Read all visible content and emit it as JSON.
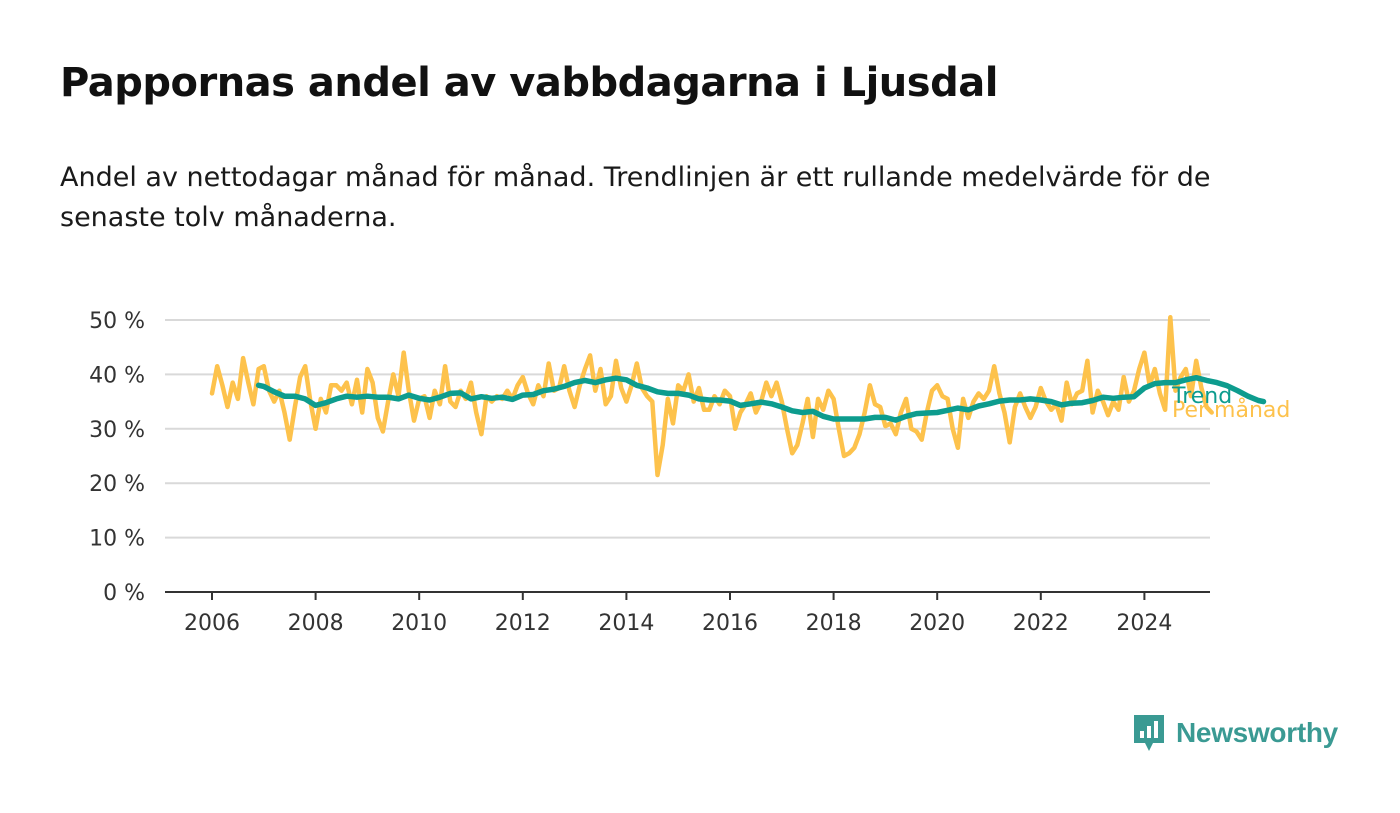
{
  "title": "Pappornas andel av vabbdagarna i Ljusdal",
  "subtitle": "Andel av nettodagar månad för månad. Trendlinjen är ett rullande medelvärde för de senaste tolv månaderna.",
  "brand": {
    "name": "Newsworthy",
    "color": "#3a9a93"
  },
  "chart_data": {
    "type": "line",
    "x_unit": "year",
    "y_unit": "%",
    "ylim": [
      0,
      50
    ],
    "y_ticks": [
      {
        "value": 0,
        "label": "0 %"
      },
      {
        "value": 10,
        "label": "10 %"
      },
      {
        "value": 20,
        "label": "20 %"
      },
      {
        "value": 30,
        "label": "30 %"
      },
      {
        "value": 40,
        "label": "40 %"
      },
      {
        "value": 50,
        "label": "50 %"
      }
    ],
    "x_ticks": [
      {
        "value": 2006,
        "label": "2006"
      },
      {
        "value": 2008,
        "label": "2008"
      },
      {
        "value": 2010,
        "label": "2010"
      },
      {
        "value": 2012,
        "label": "2012"
      },
      {
        "value": 2014,
        "label": "2014"
      },
      {
        "value": 2016,
        "label": "2016"
      },
      {
        "value": 2018,
        "label": "2018"
      },
      {
        "value": 2020,
        "label": "2020"
      },
      {
        "value": 2022,
        "label": "2022"
      },
      {
        "value": 2024,
        "label": "2024"
      }
    ],
    "xlim": [
      2005.1,
      2025.4
    ],
    "grid": true,
    "series": [
      {
        "name": "Per månad",
        "color": "#fdc24c",
        "points": [
          [
            2006.0,
            36.5
          ],
          [
            2006.1,
            41.5
          ],
          [
            2006.2,
            38.0
          ],
          [
            2006.3,
            34.0
          ],
          [
            2006.4,
            38.5
          ],
          [
            2006.5,
            35.5
          ],
          [
            2006.6,
            43.0
          ],
          [
            2006.7,
            38.5
          ],
          [
            2006.8,
            34.5
          ],
          [
            2006.9,
            41.0
          ],
          [
            2007.0,
            41.5
          ],
          [
            2007.1,
            37.0
          ],
          [
            2007.2,
            35.0
          ],
          [
            2007.3,
            37.0
          ],
          [
            2007.4,
            33.0
          ],
          [
            2007.5,
            28.0
          ],
          [
            2007.6,
            34.0
          ],
          [
            2007.7,
            39.5
          ],
          [
            2007.8,
            41.5
          ],
          [
            2007.9,
            35.0
          ],
          [
            2008.0,
            30.0
          ],
          [
            2008.1,
            35.5
          ],
          [
            2008.2,
            33.0
          ],
          [
            2008.3,
            38.0
          ],
          [
            2008.4,
            38.0
          ],
          [
            2008.5,
            37.0
          ],
          [
            2008.6,
            38.5
          ],
          [
            2008.7,
            34.5
          ],
          [
            2008.8,
            39.0
          ],
          [
            2008.9,
            33.0
          ],
          [
            2009.0,
            41.0
          ],
          [
            2009.1,
            38.5
          ],
          [
            2009.2,
            32.0
          ],
          [
            2009.3,
            29.5
          ],
          [
            2009.4,
            35.0
          ],
          [
            2009.5,
            40.0
          ],
          [
            2009.6,
            36.0
          ],
          [
            2009.7,
            44.0
          ],
          [
            2009.8,
            37.0
          ],
          [
            2009.9,
            31.5
          ],
          [
            2010.0,
            35.5
          ],
          [
            2010.1,
            36.0
          ],
          [
            2010.2,
            32.0
          ],
          [
            2010.3,
            37.0
          ],
          [
            2010.4,
            34.5
          ],
          [
            2010.5,
            41.5
          ],
          [
            2010.6,
            35.0
          ],
          [
            2010.7,
            34.0
          ],
          [
            2010.8,
            37.0
          ],
          [
            2010.9,
            35.5
          ],
          [
            2011.0,
            38.5
          ],
          [
            2011.1,
            33.0
          ],
          [
            2011.2,
            29.0
          ],
          [
            2011.3,
            36.0
          ],
          [
            2011.4,
            35.0
          ],
          [
            2011.5,
            36.0
          ],
          [
            2011.6,
            35.5
          ],
          [
            2011.7,
            37.0
          ],
          [
            2011.8,
            35.5
          ],
          [
            2011.9,
            38.0
          ],
          [
            2012.0,
            39.5
          ],
          [
            2012.1,
            36.5
          ],
          [
            2012.2,
            34.5
          ],
          [
            2012.3,
            38.0
          ],
          [
            2012.4,
            36.0
          ],
          [
            2012.5,
            42.0
          ],
          [
            2012.6,
            37.0
          ],
          [
            2012.7,
            37.5
          ],
          [
            2012.8,
            41.5
          ],
          [
            2012.9,
            37.0
          ],
          [
            2013.0,
            34.0
          ],
          [
            2013.1,
            38.0
          ],
          [
            2013.2,
            41.0
          ],
          [
            2013.3,
            43.5
          ],
          [
            2013.4,
            37.0
          ],
          [
            2013.5,
            41.0
          ],
          [
            2013.6,
            34.5
          ],
          [
            2013.7,
            36.0
          ],
          [
            2013.8,
            42.5
          ],
          [
            2013.9,
            37.5
          ],
          [
            2014.0,
            35.0
          ],
          [
            2014.1,
            38.0
          ],
          [
            2014.2,
            42.0
          ],
          [
            2014.3,
            37.5
          ],
          [
            2014.4,
            36.0
          ],
          [
            2014.5,
            35.0
          ],
          [
            2014.6,
            21.5
          ],
          [
            2014.7,
            27.0
          ],
          [
            2014.8,
            35.5
          ],
          [
            2014.9,
            31.0
          ],
          [
            2015.0,
            38.0
          ],
          [
            2015.1,
            37.0
          ],
          [
            2015.2,
            40.0
          ],
          [
            2015.3,
            35.0
          ],
          [
            2015.4,
            37.5
          ],
          [
            2015.5,
            33.5
          ],
          [
            2015.6,
            33.5
          ],
          [
            2015.7,
            36.0
          ],
          [
            2015.8,
            34.5
          ],
          [
            2015.9,
            37.0
          ],
          [
            2016.0,
            36.0
          ],
          [
            2016.1,
            30.0
          ],
          [
            2016.2,
            33.0
          ],
          [
            2016.3,
            34.5
          ],
          [
            2016.4,
            36.5
          ],
          [
            2016.5,
            33.0
          ],
          [
            2016.6,
            35.0
          ],
          [
            2016.7,
            38.5
          ],
          [
            2016.8,
            36.0
          ],
          [
            2016.9,
            38.5
          ],
          [
            2017.0,
            35.0
          ],
          [
            2017.1,
            30.0
          ],
          [
            2017.2,
            25.5
          ],
          [
            2017.3,
            27.0
          ],
          [
            2017.4,
            31.0
          ],
          [
            2017.5,
            35.5
          ],
          [
            2017.6,
            28.5
          ],
          [
            2017.7,
            35.5
          ],
          [
            2017.8,
            33.5
          ],
          [
            2017.9,
            37.0
          ],
          [
            2018.0,
            35.5
          ],
          [
            2018.1,
            30.0
          ],
          [
            2018.2,
            25.0
          ],
          [
            2018.3,
            25.5
          ],
          [
            2018.4,
            26.5
          ],
          [
            2018.5,
            29.0
          ],
          [
            2018.6,
            33.0
          ],
          [
            2018.7,
            38.0
          ],
          [
            2018.8,
            34.5
          ],
          [
            2018.9,
            34.0
          ],
          [
            2019.0,
            30.5
          ],
          [
            2019.1,
            31.0
          ],
          [
            2019.2,
            29.0
          ],
          [
            2019.3,
            33.0
          ],
          [
            2019.4,
            35.5
          ],
          [
            2019.5,
            30.0
          ],
          [
            2019.6,
            29.5
          ],
          [
            2019.7,
            28.0
          ],
          [
            2019.8,
            33.0
          ],
          [
            2019.9,
            37.0
          ],
          [
            2020.0,
            38.0
          ],
          [
            2020.1,
            36.0
          ],
          [
            2020.2,
            35.5
          ],
          [
            2020.3,
            30.0
          ],
          [
            2020.4,
            26.5
          ],
          [
            2020.5,
            35.5
          ],
          [
            2020.6,
            32.0
          ],
          [
            2020.7,
            35.0
          ],
          [
            2020.8,
            36.5
          ],
          [
            2020.9,
            35.5
          ],
          [
            2021.0,
            37.0
          ],
          [
            2021.1,
            41.5
          ],
          [
            2021.2,
            36.5
          ],
          [
            2021.3,
            33.0
          ],
          [
            2021.4,
            27.5
          ],
          [
            2021.5,
            34.0
          ],
          [
            2021.6,
            36.5
          ],
          [
            2021.7,
            34.0
          ],
          [
            2021.8,
            32.0
          ],
          [
            2021.9,
            34.0
          ],
          [
            2022.0,
            37.5
          ],
          [
            2022.1,
            35.0
          ],
          [
            2022.2,
            33.5
          ],
          [
            2022.3,
            34.5
          ],
          [
            2022.4,
            31.5
          ],
          [
            2022.5,
            38.5
          ],
          [
            2022.6,
            34.5
          ],
          [
            2022.7,
            36.5
          ],
          [
            2022.8,
            37.0
          ],
          [
            2022.9,
            42.5
          ],
          [
            2023.0,
            33.0
          ],
          [
            2023.1,
            37.0
          ],
          [
            2023.2,
            35.0
          ],
          [
            2023.3,
            32.5
          ],
          [
            2023.4,
            35.0
          ],
          [
            2023.5,
            33.5
          ],
          [
            2023.6,
            39.5
          ],
          [
            2023.7,
            35.0
          ],
          [
            2023.8,
            37.0
          ],
          [
            2023.9,
            41.0
          ],
          [
            2024.0,
            44.0
          ],
          [
            2024.1,
            38.0
          ],
          [
            2024.2,
            41.0
          ],
          [
            2024.3,
            36.5
          ],
          [
            2024.4,
            33.5
          ],
          [
            2024.5,
            50.5
          ],
          [
            2024.6,
            37.0
          ],
          [
            2024.7,
            39.5
          ],
          [
            2024.8,
            41.0
          ],
          [
            2024.9,
            36.0
          ],
          [
            2025.0,
            42.5
          ],
          [
            2025.1,
            37.5
          ],
          [
            2025.2,
            34.0
          ],
          [
            2025.3,
            33.0
          ]
        ]
      },
      {
        "name": "Trend",
        "color": "#0d9c8e",
        "points": [
          [
            2006.9,
            38.0
          ],
          [
            2007.0,
            37.8
          ],
          [
            2007.2,
            36.8
          ],
          [
            2007.4,
            36.0
          ],
          [
            2007.6,
            36.0
          ],
          [
            2007.8,
            35.5
          ],
          [
            2008.0,
            34.3
          ],
          [
            2008.2,
            34.8
          ],
          [
            2008.4,
            35.5
          ],
          [
            2008.6,
            36.0
          ],
          [
            2008.8,
            35.8
          ],
          [
            2009.0,
            36.0
          ],
          [
            2009.2,
            35.8
          ],
          [
            2009.4,
            35.8
          ],
          [
            2009.6,
            35.5
          ],
          [
            2009.8,
            36.2
          ],
          [
            2010.0,
            35.6
          ],
          [
            2010.2,
            35.3
          ],
          [
            2010.4,
            35.8
          ],
          [
            2010.6,
            36.5
          ],
          [
            2010.8,
            36.6
          ],
          [
            2011.0,
            35.5
          ],
          [
            2011.2,
            35.9
          ],
          [
            2011.4,
            35.6
          ],
          [
            2011.6,
            35.8
          ],
          [
            2011.8,
            35.4
          ],
          [
            2012.0,
            36.2
          ],
          [
            2012.2,
            36.3
          ],
          [
            2012.4,
            37.0
          ],
          [
            2012.6,
            37.3
          ],
          [
            2012.8,
            37.8
          ],
          [
            2013.0,
            38.5
          ],
          [
            2013.2,
            38.9
          ],
          [
            2013.4,
            38.5
          ],
          [
            2013.6,
            39.0
          ],
          [
            2013.8,
            39.3
          ],
          [
            2014.0,
            39.0
          ],
          [
            2014.2,
            38.0
          ],
          [
            2014.4,
            37.5
          ],
          [
            2014.6,
            36.8
          ],
          [
            2014.8,
            36.5
          ],
          [
            2015.0,
            36.5
          ],
          [
            2015.2,
            36.2
          ],
          [
            2015.4,
            35.5
          ],
          [
            2015.6,
            35.3
          ],
          [
            2015.8,
            35.3
          ],
          [
            2016.0,
            35.1
          ],
          [
            2016.2,
            34.3
          ],
          [
            2016.4,
            34.6
          ],
          [
            2016.6,
            34.9
          ],
          [
            2016.8,
            34.6
          ],
          [
            2017.0,
            34.0
          ],
          [
            2017.2,
            33.3
          ],
          [
            2017.4,
            33.0
          ],
          [
            2017.6,
            33.2
          ],
          [
            2017.8,
            32.3
          ],
          [
            2018.0,
            31.8
          ],
          [
            2018.2,
            31.8
          ],
          [
            2018.4,
            31.8
          ],
          [
            2018.6,
            31.8
          ],
          [
            2018.8,
            32.1
          ],
          [
            2019.0,
            32.1
          ],
          [
            2019.2,
            31.6
          ],
          [
            2019.4,
            32.3
          ],
          [
            2019.6,
            32.8
          ],
          [
            2019.8,
            32.9
          ],
          [
            2020.0,
            33.0
          ],
          [
            2020.2,
            33.4
          ],
          [
            2020.4,
            33.8
          ],
          [
            2020.6,
            33.5
          ],
          [
            2020.8,
            34.2
          ],
          [
            2021.0,
            34.6
          ],
          [
            2021.2,
            35.1
          ],
          [
            2021.4,
            35.3
          ],
          [
            2021.6,
            35.3
          ],
          [
            2021.8,
            35.5
          ],
          [
            2022.0,
            35.3
          ],
          [
            2022.2,
            35.0
          ],
          [
            2022.4,
            34.4
          ],
          [
            2022.6,
            34.7
          ],
          [
            2022.8,
            34.8
          ],
          [
            2023.0,
            35.2
          ],
          [
            2023.2,
            35.8
          ],
          [
            2023.4,
            35.6
          ],
          [
            2023.6,
            35.8
          ],
          [
            2023.8,
            35.9
          ],
          [
            2024.0,
            37.5
          ],
          [
            2024.2,
            38.3
          ],
          [
            2024.4,
            38.5
          ],
          [
            2024.6,
            38.5
          ],
          [
            2024.8,
            39.0
          ],
          [
            2025.0,
            39.4
          ],
          [
            2025.2,
            38.9
          ],
          [
            2025.4,
            38.5
          ],
          [
            2025.6,
            37.9
          ],
          [
            2025.8,
            37.0
          ],
          [
            2026.0,
            36.0
          ],
          [
            2026.2,
            35.2
          ],
          [
            2026.3,
            35.0
          ]
        ]
      }
    ]
  }
}
